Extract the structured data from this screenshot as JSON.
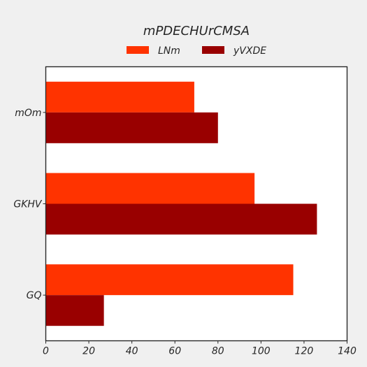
{
  "chart_data": {
    "type": "bar",
    "orientation": "horizontal",
    "title": "mPDECHUrCMSA",
    "xlabel": "",
    "ylabel": "",
    "categories": [
      "mOm",
      "GKHV",
      "GQ"
    ],
    "series": [
      {
        "name": "LNm",
        "color": "#ff3300",
        "values": [
          69,
          97,
          115
        ]
      },
      {
        "name": "yVXDE",
        "color": "#990000",
        "values": [
          80,
          126,
          27
        ]
      }
    ],
    "xlim": [
      0,
      140
    ],
    "xticks": [
      0,
      20,
      40,
      60,
      80,
      100,
      120,
      140
    ],
    "xtick_labels": [
      "0",
      "20",
      "40",
      "60",
      "80",
      "100",
      "120",
      "140"
    ],
    "legend_position": "top-center",
    "grid": false
  }
}
